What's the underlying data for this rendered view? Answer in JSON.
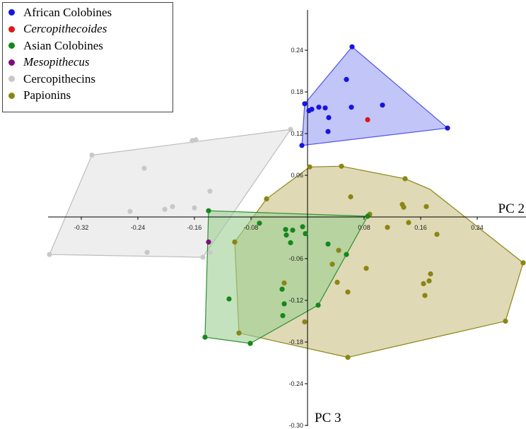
{
  "chart_data": {
    "type": "scatter",
    "xlabel": "PC 2",
    "ylabel": "PC 3",
    "xlim": [
      -0.365,
      0.305
    ],
    "ylim": [
      -0.3,
      0.295
    ],
    "x_ticks": [
      -0.32,
      -0.24,
      -0.16,
      -0.08,
      0.08,
      0.16,
      0.24
    ],
    "x_tick_labels": [
      "-0.32",
      "-0.24",
      "-0.16",
      "-0.08",
      "0.08",
      "0.16",
      "0.24"
    ],
    "y_ticks": [
      0.24,
      0.18,
      0.12,
      0.06,
      -0.06,
      -0.12,
      -0.18,
      -0.24,
      -0.3
    ],
    "y_tick_labels": [
      "0.24",
      "0.18",
      "0.12",
      "0.06",
      "-0.06",
      "-0.12",
      "-0.18",
      "-0.24",
      "-0.30"
    ],
    "legend_position": "top-left",
    "series": [
      {
        "name": "Cercopithecins",
        "italic": false,
        "color": "#c8c8c8",
        "hull_fill": "#e3e3e3",
        "hull_stroke": "#bdbdbd",
        "draw_hull": true,
        "points": [
          [
            -0.305,
            0.089
          ],
          [
            -0.231,
            0.07
          ],
          [
            -0.202,
            0.011
          ],
          [
            -0.163,
            0.11
          ],
          [
            -0.158,
            0.111
          ],
          [
            -0.138,
            0.037
          ],
          [
            -0.251,
            0.008
          ],
          [
            -0.191,
            0.015
          ],
          [
            -0.16,
            0.013
          ],
          [
            -0.365,
            -0.054
          ],
          [
            -0.227,
            -0.051
          ],
          [
            -0.148,
            -0.058
          ],
          [
            -0.138,
            -0.051
          ],
          [
            -0.024,
            0.126
          ]
        ],
        "hull": [
          [
            -0.305,
            0.089
          ],
          [
            -0.024,
            0.126
          ],
          [
            -0.148,
            -0.058
          ],
          [
            -0.365,
            -0.054
          ]
        ]
      },
      {
        "name": "Papionins",
        "italic": false,
        "color": "#8b8514",
        "hull_fill": "#c9c083",
        "hull_stroke": "#8b8514",
        "draw_hull": true,
        "points": [
          [
            0.003,
            0.072
          ],
          [
            0.048,
            0.073
          ],
          [
            0.138,
            0.055
          ],
          [
            -0.058,
            0.026
          ],
          [
            0.061,
            0.029
          ],
          [
            0.088,
            0.004
          ],
          [
            0.134,
            0.018
          ],
          [
            0.136,
            0.014
          ],
          [
            0.168,
            0.015
          ],
          [
            0.113,
            -0.015
          ],
          [
            0.143,
            -0.008
          ],
          [
            -0.103,
            -0.036
          ],
          [
            0.183,
            -0.025
          ],
          [
            0.044,
            -0.048
          ],
          [
            0.035,
            -0.068
          ],
          [
            0.083,
            -0.074
          ],
          [
            0.042,
            -0.094
          ],
          [
            0.057,
            -0.108
          ],
          [
            0.174,
            -0.082
          ],
          [
            0.172,
            -0.092
          ],
          [
            0.164,
            -0.096
          ],
          [
            0.166,
            -0.113
          ],
          [
            -0.033,
            -0.095
          ],
          [
            -0.004,
            -0.151
          ],
          [
            0.057,
            -0.202
          ],
          [
            0.28,
            -0.15
          ],
          [
            0.305,
            -0.066
          ],
          [
            -0.097,
            -0.167
          ]
        ],
        "hull": [
          [
            0.003,
            0.072
          ],
          [
            0.048,
            0.073
          ],
          [
            0.138,
            0.055
          ],
          [
            0.173,
            0.04
          ],
          [
            0.305,
            -0.066
          ],
          [
            0.28,
            -0.15
          ],
          [
            0.057,
            -0.202
          ],
          [
            -0.097,
            -0.167
          ],
          [
            -0.103,
            -0.036
          ],
          [
            -0.058,
            0.026
          ]
        ]
      },
      {
        "name": "Asian Colobines",
        "italic": false,
        "color": "#15871b",
        "hull_fill": "#9dce92",
        "hull_stroke": "#2f8f2f",
        "draw_hull": true,
        "points": [
          [
            -0.14,
            0.009
          ],
          [
            -0.068,
            -0.009
          ],
          [
            -0.031,
            -0.018
          ],
          [
            -0.021,
            -0.019
          ],
          [
            -0.03,
            -0.026
          ],
          [
            -0.007,
            -0.014
          ],
          [
            -0.003,
            -0.024
          ],
          [
            -0.024,
            -0.037
          ],
          [
            0.029,
            -0.039
          ],
          [
            0.055,
            -0.054
          ],
          [
            -0.111,
            -0.118
          ],
          [
            -0.036,
            -0.104
          ],
          [
            -0.033,
            -0.125
          ],
          [
            0.015,
            -0.127
          ],
          [
            -0.035,
            -0.142
          ],
          [
            -0.145,
            -0.173
          ],
          [
            -0.081,
            -0.182
          ],
          [
            0.085,
            0.001
          ]
        ],
        "hull": [
          [
            -0.14,
            0.009
          ],
          [
            0.085,
            0.001
          ],
          [
            0.015,
            -0.127
          ],
          [
            -0.081,
            -0.182
          ],
          [
            -0.145,
            -0.173
          ]
        ]
      },
      {
        "name": "African Colobines",
        "italic": false,
        "color": "#1515e0",
        "hull_fill": "#9a9ff3",
        "hull_stroke": "#4f55e6",
        "draw_hull": true,
        "points": [
          [
            0.063,
            0.245
          ],
          [
            0.055,
            0.198
          ],
          [
            0.106,
            0.161
          ],
          [
            0.062,
            0.158
          ],
          [
            -0.004,
            0.163
          ],
          [
            0.002,
            0.153
          ],
          [
            0.006,
            0.155
          ],
          [
            0.016,
            0.158
          ],
          [
            0.025,
            0.157
          ],
          [
            0.03,
            0.143
          ],
          [
            0.029,
            0.123
          ],
          [
            0.198,
            0.128
          ],
          [
            -0.008,
            0.103
          ]
        ],
        "hull": [
          [
            0.063,
            0.245
          ],
          [
            0.198,
            0.128
          ],
          [
            -0.008,
            0.103
          ],
          [
            -0.004,
            0.163
          ]
        ]
      },
      {
        "name": "Cercopithecoides",
        "italic": true,
        "color": "#e01515",
        "draw_hull": false,
        "points": [
          [
            0.085,
            0.14
          ]
        ]
      },
      {
        "name": "Mesopithecus",
        "italic": true,
        "color": "#800d80",
        "draw_hull": false,
        "points": [
          [
            -0.14,
            -0.036
          ]
        ]
      }
    ],
    "legend_order": [
      "African Colobines",
      "Cercopithecoides",
      "Asian Colobines",
      "Mesopithecus",
      "Cercopithecins",
      "Papionins"
    ]
  }
}
